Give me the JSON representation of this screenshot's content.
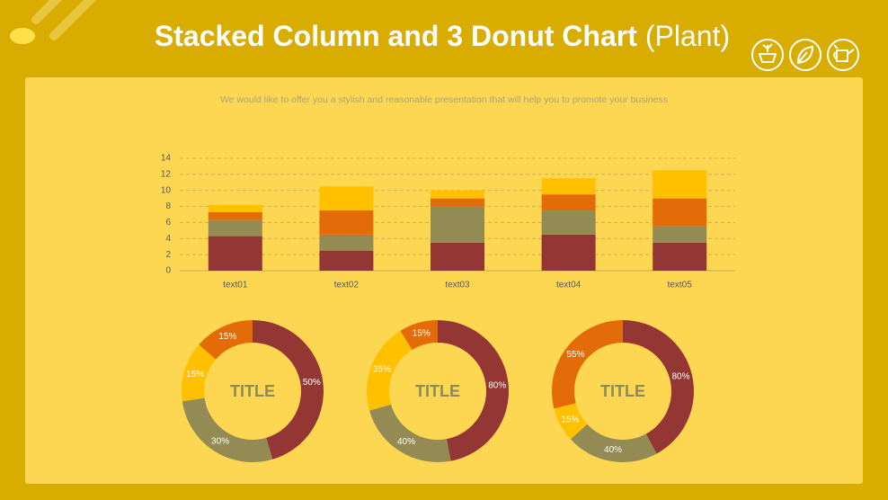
{
  "header": {
    "title": "Stacked Column and 3 Donut Chart",
    "title_suffix": "(Plant)"
  },
  "chart_data": [
    {
      "type": "bar",
      "stacked": true,
      "subtitle": "We would like to offer you a stylish and reasonable presentation that will help you to promote your business",
      "categories": [
        "text01",
        "text02",
        "text03",
        "text04",
        "text05"
      ],
      "series": [
        {
          "color": "#943634",
          "values": [
            4.3,
            2.5,
            3.5,
            4.5,
            3.5
          ]
        },
        {
          "color": "#948a54",
          "values": [
            2,
            2,
            4.5,
            3,
            2
          ]
        },
        {
          "color": "#e36c09",
          "values": [
            1,
            3,
            1,
            2,
            3.5
          ]
        },
        {
          "color": "#ffc000",
          "values": [
            0.9,
            3,
            1,
            2,
            3.5
          ]
        }
      ],
      "ylim": [
        0,
        14
      ],
      "yticks": [
        0,
        2,
        4,
        6,
        8,
        10,
        12,
        14
      ],
      "grid": true
    },
    {
      "type": "pie",
      "title": "TITLE",
      "values": [
        50,
        30,
        15,
        15
      ],
      "value_labels": [
        "50%",
        "30%",
        "15%",
        "15%"
      ],
      "colors": [
        "#943634",
        "#948a54",
        "#ffc000",
        "#e36c09"
      ]
    },
    {
      "type": "pie",
      "title": "TITLE",
      "values": [
        80,
        40,
        35,
        15
      ],
      "value_labels": [
        "80%",
        "40%",
        "35%",
        "15%"
      ],
      "colors": [
        "#943634",
        "#948a54",
        "#ffc000",
        "#e36c09"
      ]
    },
    {
      "type": "pie",
      "title": "TITLE",
      "values": [
        80,
        40,
        15,
        55
      ],
      "value_labels": [
        "80%",
        "40%",
        "15%",
        "55%"
      ],
      "colors": [
        "#943634",
        "#948a54",
        "#ffc000",
        "#e36c09"
      ]
    }
  ]
}
